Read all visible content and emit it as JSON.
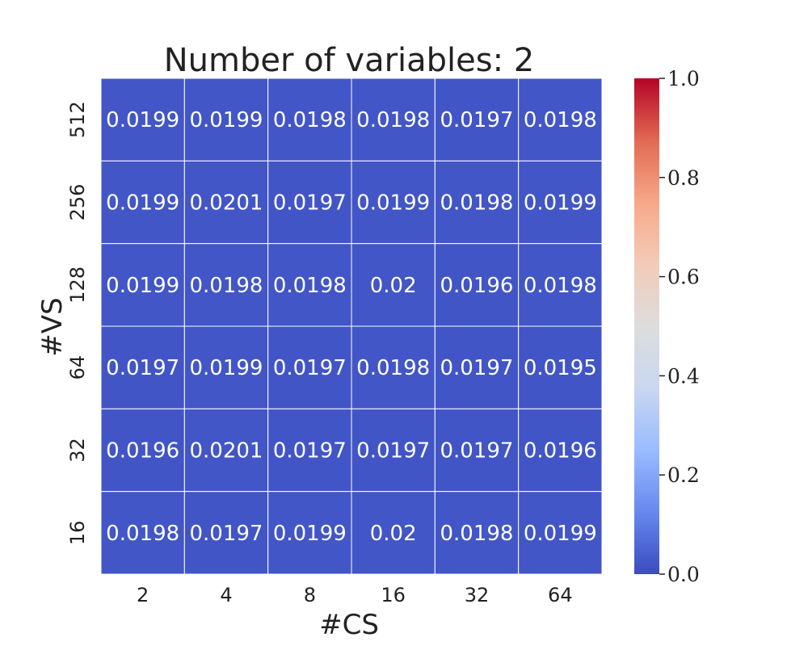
{
  "chart_data": {
    "type": "heatmap",
    "title": "Number of variables: 2",
    "xlabel": "#CS",
    "ylabel": "#VS",
    "x_categories": [
      "2",
      "4",
      "8",
      "16",
      "32",
      "64"
    ],
    "y_categories": [
      "512",
      "256",
      "128",
      "64",
      "32",
      "16"
    ],
    "values": [
      [
        0.0199,
        0.0199,
        0.0198,
        0.0198,
        0.0197,
        0.0198
      ],
      [
        0.0199,
        0.0201,
        0.0197,
        0.0199,
        0.0198,
        0.0199
      ],
      [
        0.0199,
        0.0198,
        0.0198,
        0.02,
        0.0196,
        0.0198
      ],
      [
        0.0197,
        0.0199,
        0.0197,
        0.0198,
        0.0197,
        0.0195
      ],
      [
        0.0196,
        0.0201,
        0.0197,
        0.0197,
        0.0197,
        0.0196
      ],
      [
        0.0198,
        0.0197,
        0.0199,
        0.02,
        0.0198,
        0.0199
      ]
    ],
    "colorbar": {
      "range": [
        0.0,
        1.0
      ],
      "ticks": [
        "0.0",
        "0.2",
        "0.4",
        "0.6",
        "0.8",
        "1.0"
      ],
      "colormap": "coolwarm"
    },
    "grid": true,
    "colors": {
      "cell": "#3f57c9",
      "grid_line": "#ffffff",
      "cmap_stops": [
        "#3b4cc0",
        "#6788ee",
        "#9abbff",
        "#c9d7f0",
        "#dddddd",
        "#f2cbb7",
        "#f7a889",
        "#e26952",
        "#b40426"
      ]
    }
  }
}
